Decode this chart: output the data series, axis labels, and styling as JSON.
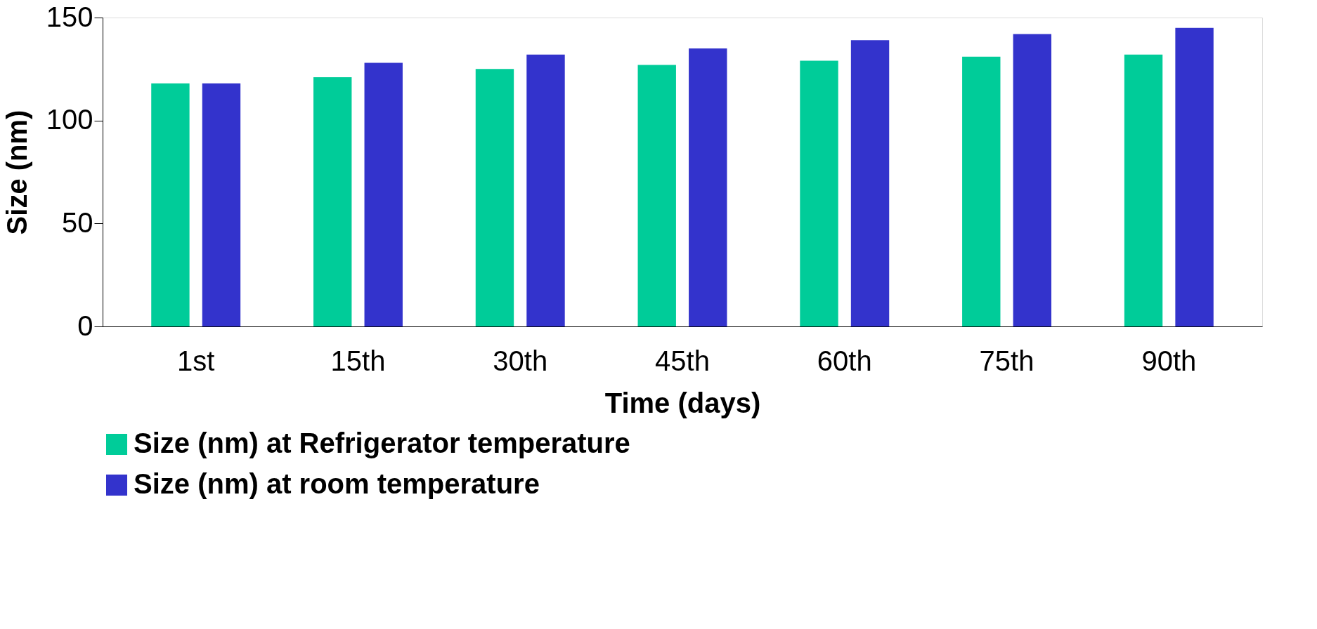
{
  "chart_data": {
    "type": "bar",
    "xlabel": "Time (days)",
    "ylabel": "Size (nm)",
    "categories": [
      "1st",
      "15th",
      "30th",
      "45th",
      "60th",
      "75th",
      "90th"
    ],
    "series": [
      {
        "name": "Size (nm) at Refrigerator temperature",
        "color": "#00cc99",
        "values": [
          118,
          121,
          125,
          127,
          129,
          131,
          132
        ]
      },
      {
        "name": "Size (nm) at room temperature",
        "color": "#3333cc",
        "values": [
          118,
          128,
          132,
          135,
          139,
          142,
          145
        ]
      }
    ],
    "ylim": [
      0,
      150
    ],
    "yticks": [
      0,
      50,
      100,
      150
    ],
    "grid": false,
    "legend": "bottom"
  }
}
